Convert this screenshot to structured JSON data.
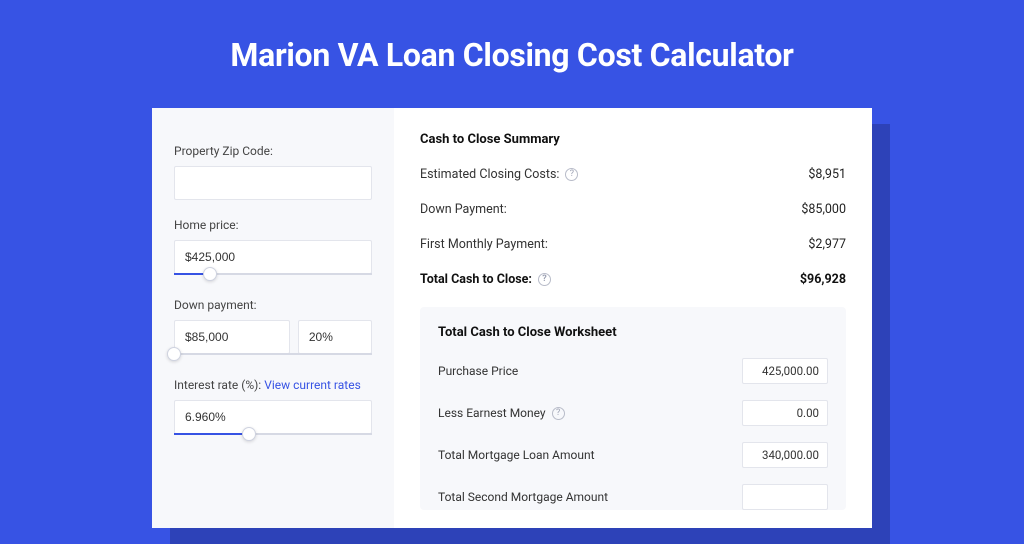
{
  "page": {
    "title": "Marion VA Loan Closing Cost Calculator",
    "colors": {
      "background": "#3753e4",
      "shadow": "#2d42b8",
      "card": "#ffffff",
      "panel": "#f7f8fb",
      "accent": "#3753e4",
      "border": "#e3e5ec",
      "text": "#222222",
      "muted": "#444444"
    }
  },
  "form": {
    "zip": {
      "label": "Property Zip Code:",
      "value": ""
    },
    "home_price": {
      "label": "Home price:",
      "value": "$425,000",
      "slider_fill_pct": 18,
      "thumb_pct": 18
    },
    "down_payment": {
      "label": "Down payment:",
      "amount": "$85,000",
      "percent": "20%",
      "slider_fill_pct": 0,
      "thumb_pct": 0
    },
    "interest_rate": {
      "label": "Interest rate (%): ",
      "link_text": "View current rates",
      "value": "6.960%",
      "slider_fill_pct": 38,
      "thumb_pct": 38
    }
  },
  "summary": {
    "title": "Cash to Close Summary",
    "rows": [
      {
        "label": "Estimated Closing Costs:",
        "help": true,
        "value": "$8,951",
        "bold": false
      },
      {
        "label": "Down Payment:",
        "help": false,
        "value": "$85,000",
        "bold": false
      },
      {
        "label": "First Monthly Payment:",
        "help": false,
        "value": "$2,977",
        "bold": false
      },
      {
        "label": "Total Cash to Close:",
        "help": true,
        "value": "$96,928",
        "bold": true
      }
    ]
  },
  "worksheet": {
    "title": "Total Cash to Close Worksheet",
    "rows": [
      {
        "label": "Purchase Price",
        "help": false,
        "value": "425,000.00"
      },
      {
        "label": "Less Earnest Money",
        "help": true,
        "value": "0.00"
      },
      {
        "label": "Total Mortgage Loan Amount",
        "help": false,
        "value": "340,000.00"
      },
      {
        "label": "Total Second Mortgage Amount",
        "help": false,
        "value": ""
      }
    ]
  }
}
